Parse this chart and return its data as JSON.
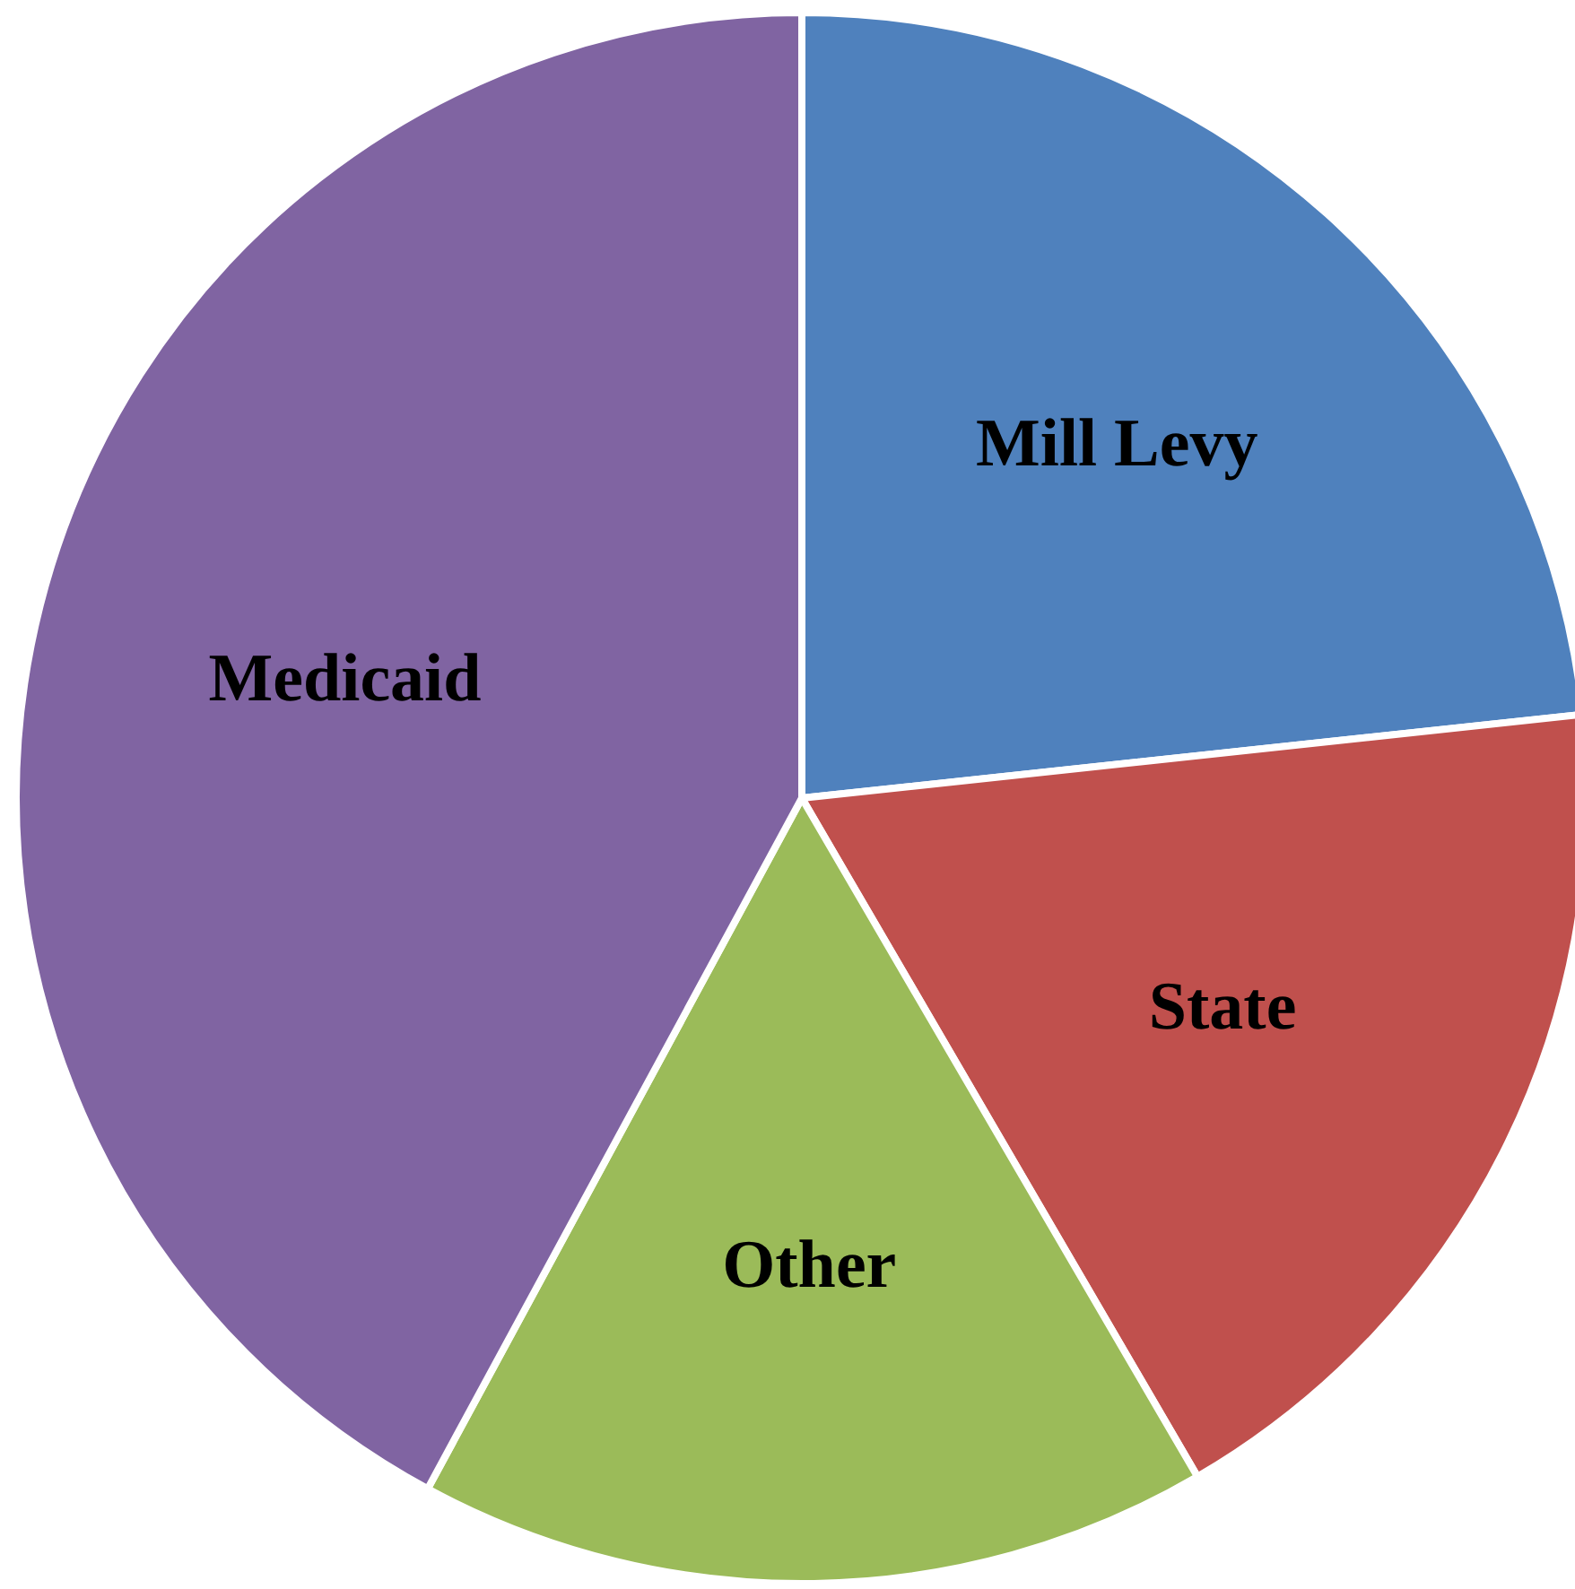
{
  "chart_data": {
    "type": "pie",
    "categories": [
      "Mill Levy",
      "State",
      "Other",
      "Medicaid"
    ],
    "values": [
      23.3,
      18.3,
      16.3,
      42.1
    ],
    "colors": [
      "#4f81bd",
      "#c0504d",
      "#9bbb59",
      "#8064a2"
    ]
  }
}
